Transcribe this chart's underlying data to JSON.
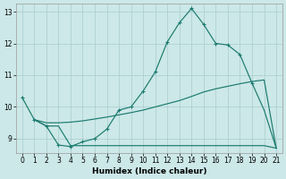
{
  "xlabel": "Humidex (Indice chaleur)",
  "bg_color": "#cce8e8",
  "grid_color": "#aacccc",
  "line_color": "#1a7a6e",
  "xlim": [
    -0.5,
    21.5
  ],
  "ylim": [
    8.55,
    13.25
  ],
  "yticks": [
    9,
    10,
    11,
    12,
    13
  ],
  "xticks": [
    0,
    1,
    2,
    3,
    4,
    5,
    6,
    7,
    8,
    9,
    10,
    11,
    12,
    13,
    14,
    15,
    16,
    17,
    18,
    19,
    20,
    21
  ],
  "series1_x": [
    0,
    1,
    2,
    3,
    4,
    5,
    6,
    7,
    8,
    9,
    10,
    11,
    12,
    13,
    14,
    15,
    16,
    17,
    18,
    19
  ],
  "series1_y": [
    10.3,
    9.6,
    9.4,
    8.8,
    8.75,
    8.9,
    9.0,
    9.3,
    9.9,
    10.0,
    10.5,
    11.1,
    12.05,
    12.65,
    13.1,
    12.6,
    12.0,
    11.95,
    11.65,
    10.75
  ],
  "series2_x": [
    19,
    20,
    21
  ],
  "series2_y": [
    10.75,
    9.9,
    8.7
  ],
  "series3_x": [
    1,
    2,
    3,
    4,
    5,
    6,
    7,
    8,
    9,
    10,
    11,
    12,
    13,
    14,
    15,
    16,
    17,
    18,
    19,
    20,
    21
  ],
  "series3_y": [
    9.6,
    9.4,
    9.4,
    8.78,
    8.78,
    8.78,
    8.78,
    8.78,
    8.78,
    8.78,
    8.78,
    8.78,
    8.78,
    8.78,
    8.78,
    8.78,
    8.78,
    8.78,
    8.78,
    8.78,
    8.7
  ],
  "series4_x": [
    1,
    2,
    3,
    4,
    5,
    6,
    7,
    8,
    9,
    10,
    11,
    12,
    13,
    14,
    15,
    16,
    17,
    18,
    19,
    20,
    21
  ],
  "series4_y": [
    9.6,
    9.5,
    9.5,
    9.52,
    9.56,
    9.62,
    9.68,
    9.75,
    9.82,
    9.9,
    10.0,
    10.1,
    10.2,
    10.33,
    10.47,
    10.57,
    10.65,
    10.73,
    10.8,
    10.85,
    8.7
  ]
}
